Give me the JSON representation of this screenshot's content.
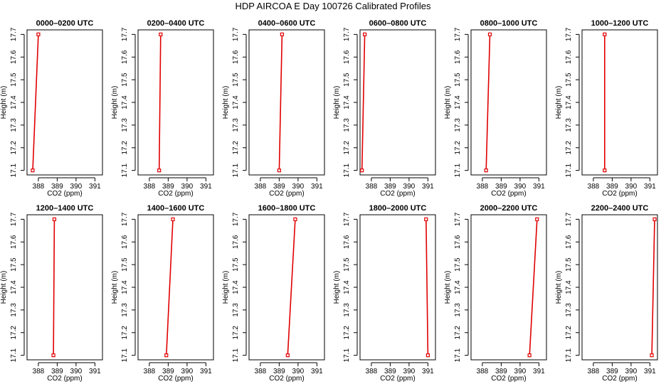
{
  "figure_title": "HDP AIRCOA E  Day 100726  Calibrated Profiles",
  "colors": {
    "profile": "#e00000",
    "axis": "#000000"
  },
  "chart_data": [
    {
      "type": "line",
      "title": "0000–0200 UTC",
      "xlabel": "CO2 (ppm)",
      "ylabel": "Height (m)",
      "xlim": [
        387.4,
        391.4
      ],
      "ylim": [
        17.08,
        17.72
      ],
      "x_ticks": [
        388,
        389,
        390,
        391
      ],
      "y_ticks": [
        17.1,
        17.2,
        17.3,
        17.4,
        17.5,
        17.6,
        17.7
      ],
      "series": [
        {
          "x": [
            387.7,
            388.0
          ],
          "y": [
            17.1,
            17.7
          ]
        }
      ]
    },
    {
      "type": "line",
      "title": "0200–0400 UTC",
      "xlabel": "CO2 (ppm)",
      "ylabel": "Height (m)",
      "xlim": [
        387.4,
        391.4
      ],
      "ylim": [
        17.08,
        17.72
      ],
      "x_ticks": [
        388,
        389,
        390,
        391
      ],
      "y_ticks": [
        17.1,
        17.2,
        17.3,
        17.4,
        17.5,
        17.6,
        17.7
      ],
      "series": [
        {
          "x": [
            388.52,
            388.6
          ],
          "y": [
            17.1,
            17.7
          ]
        }
      ]
    },
    {
      "type": "line",
      "title": "0400–0600 UTC",
      "xlabel": "CO2 (ppm)",
      "ylabel": "Height (m)",
      "xlim": [
        387.4,
        391.4
      ],
      "ylim": [
        17.08,
        17.72
      ],
      "x_ticks": [
        388,
        389,
        390,
        391
      ],
      "y_ticks": [
        17.1,
        17.2,
        17.3,
        17.4,
        17.5,
        17.6,
        17.7
      ],
      "series": [
        {
          "x": [
            389.0,
            389.15
          ],
          "y": [
            17.1,
            17.7
          ]
        }
      ]
    },
    {
      "type": "line",
      "title": "0600–0800 UTC",
      "xlabel": "CO2 (ppm)",
      "ylabel": "Height (m)",
      "xlim": [
        387.4,
        391.4
      ],
      "ylim": [
        17.08,
        17.72
      ],
      "x_ticks": [
        388,
        389,
        390,
        391
      ],
      "y_ticks": [
        17.1,
        17.2,
        17.3,
        17.4,
        17.5,
        17.6,
        17.7
      ],
      "series": [
        {
          "x": [
            387.5,
            387.65
          ],
          "y": [
            17.1,
            17.7
          ]
        }
      ]
    },
    {
      "type": "line",
      "title": "0800–1000 UTC",
      "xlabel": "CO2 (ppm)",
      "ylabel": "Height (m)",
      "xlim": [
        387.4,
        391.4
      ],
      "ylim": [
        17.08,
        17.72
      ],
      "x_ticks": [
        388,
        389,
        390,
        391
      ],
      "y_ticks": [
        17.1,
        17.2,
        17.3,
        17.4,
        17.5,
        17.6,
        17.7
      ],
      "series": [
        {
          "x": [
            388.2,
            388.4
          ],
          "y": [
            17.1,
            17.7
          ]
        }
      ]
    },
    {
      "type": "line",
      "title": "1000–1200 UTC",
      "xlabel": "CO2 (ppm)",
      "ylabel": "Height (m)",
      "xlim": [
        387.4,
        391.4
      ],
      "ylim": [
        17.08,
        17.72
      ],
      "x_ticks": [
        388,
        389,
        390,
        391
      ],
      "y_ticks": [
        17.1,
        17.2,
        17.3,
        17.4,
        17.5,
        17.6,
        17.7
      ],
      "series": [
        {
          "x": [
            388.6,
            388.6
          ],
          "y": [
            17.1,
            17.7
          ]
        }
      ]
    },
    {
      "type": "line",
      "title": "1200–1400 UTC",
      "xlabel": "CO2 (ppm)",
      "ylabel": "Height (m)",
      "xlim": [
        387.4,
        391.4
      ],
      "ylim": [
        17.08,
        17.72
      ],
      "x_ticks": [
        388,
        389,
        390,
        391
      ],
      "y_ticks": [
        17.1,
        17.2,
        17.3,
        17.4,
        17.5,
        17.6,
        17.7
      ],
      "series": [
        {
          "x": [
            388.8,
            388.85
          ],
          "y": [
            17.1,
            17.7
          ]
        }
      ]
    },
    {
      "type": "line",
      "title": "1400–1600 UTC",
      "xlabel": "CO2 (ppm)",
      "ylabel": "Height (m)",
      "xlim": [
        387.4,
        391.4
      ],
      "ylim": [
        17.08,
        17.72
      ],
      "x_ticks": [
        388,
        389,
        390,
        391
      ],
      "y_ticks": [
        17.1,
        17.2,
        17.3,
        17.4,
        17.5,
        17.6,
        17.7
      ],
      "series": [
        {
          "x": [
            388.9,
            389.25
          ],
          "y": [
            17.1,
            17.7
          ]
        }
      ]
    },
    {
      "type": "line",
      "title": "1600–1800 UTC",
      "xlabel": "CO2 (ppm)",
      "ylabel": "Height (m)",
      "xlim": [
        387.4,
        391.4
      ],
      "ylim": [
        17.08,
        17.72
      ],
      "x_ticks": [
        388,
        389,
        390,
        391
      ],
      "y_ticks": [
        17.1,
        17.2,
        17.3,
        17.4,
        17.5,
        17.6,
        17.7
      ],
      "series": [
        {
          "x": [
            389.45,
            389.85
          ],
          "y": [
            17.1,
            17.7
          ]
        }
      ]
    },
    {
      "type": "line",
      "title": "1800–2000 UTC",
      "xlabel": "CO2 (ppm)",
      "ylabel": "Height (m)",
      "xlim": [
        387.4,
        391.4
      ],
      "ylim": [
        17.08,
        17.72
      ],
      "x_ticks": [
        388,
        389,
        390,
        391
      ],
      "y_ticks": [
        17.1,
        17.2,
        17.3,
        17.4,
        17.5,
        17.6,
        17.7
      ],
      "series": [
        {
          "x": [
            391.0,
            390.9
          ],
          "y": [
            17.1,
            17.7
          ]
        }
      ]
    },
    {
      "type": "line",
      "title": "2000–2200 UTC",
      "xlabel": "CO2 (ppm)",
      "ylabel": "Height (m)",
      "xlim": [
        387.4,
        391.4
      ],
      "ylim": [
        17.08,
        17.72
      ],
      "x_ticks": [
        388,
        389,
        390,
        391
      ],
      "y_ticks": [
        17.1,
        17.2,
        17.3,
        17.4,
        17.5,
        17.6,
        17.7
      ],
      "series": [
        {
          "x": [
            390.5,
            390.9
          ],
          "y": [
            17.1,
            17.7
          ]
        }
      ]
    },
    {
      "type": "line",
      "title": "2200–2400 UTC",
      "xlabel": "CO2 (ppm)",
      "ylabel": "Height (m)",
      "xlim": [
        387.4,
        391.4
      ],
      "ylim": [
        17.08,
        17.72
      ],
      "x_ticks": [
        388,
        389,
        390,
        391
      ],
      "y_ticks": [
        17.1,
        17.2,
        17.3,
        17.4,
        17.5,
        17.6,
        17.7
      ],
      "series": [
        {
          "x": [
            391.1,
            391.25
          ],
          "y": [
            17.1,
            17.7
          ]
        }
      ]
    }
  ]
}
